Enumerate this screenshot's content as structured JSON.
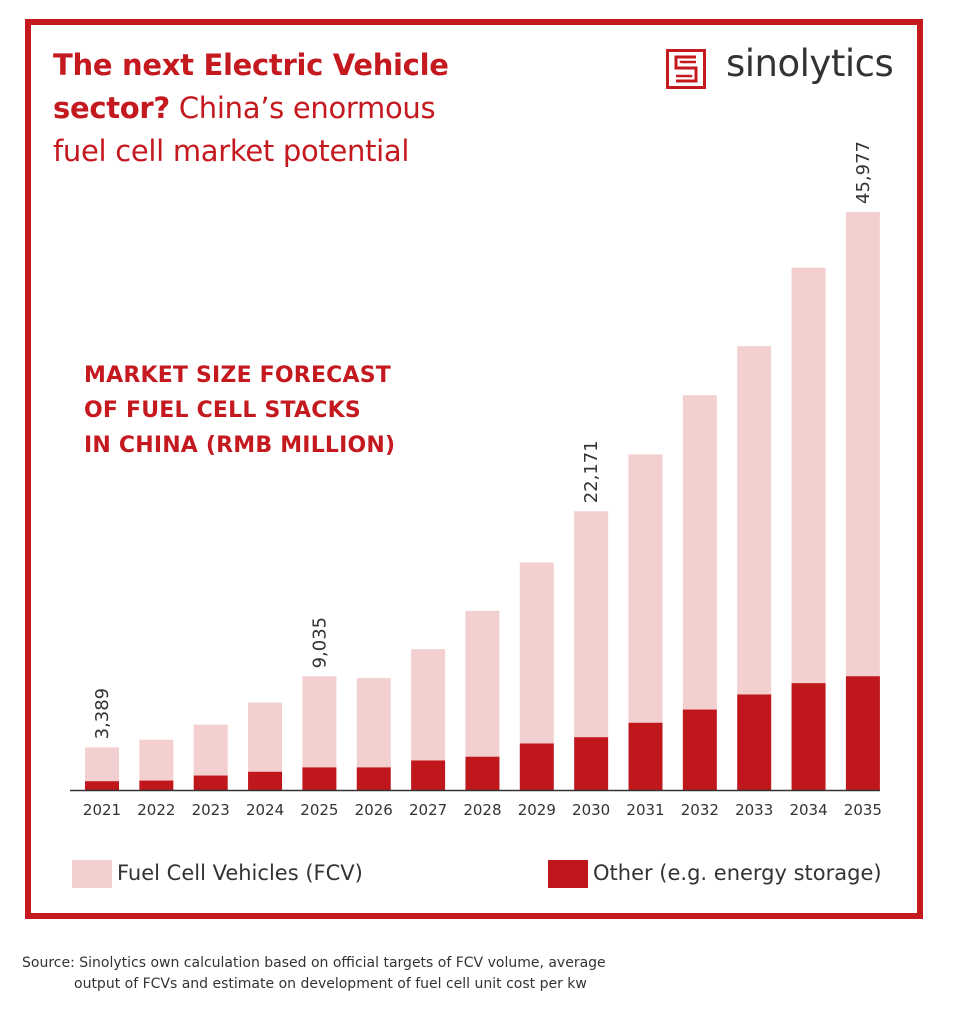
{
  "header": {
    "title_bold_1": "The next Electric Vehicle",
    "title_bold_2": "sector?",
    "title_rest_2": " China’s enormous",
    "title_line_3": "fuel cell market potential"
  },
  "logo": {
    "text": "sinolytics",
    "icon": "sinolytics-logo-icon"
  },
  "chart_title": {
    "line1": "MARKET SIZE FORECAST",
    "line2": "OF FUEL CELL STACKS",
    "line3": "IN CHINA (RMB MILLION)"
  },
  "colors": {
    "fcv": "#f3cfcf",
    "other": "#c0171c",
    "accent": "#c4191f",
    "axis": "#333333"
  },
  "chart_data": {
    "type": "bar",
    "stacked": true,
    "title": "MARKET SIZE FORECAST OF FUEL CELL STACKS IN CHINA (RMB MILLION)",
    "xlabel": "",
    "ylabel": "",
    "ylim": [
      0,
      45977
    ],
    "grid": false,
    "legend_position": "bottom",
    "categories": [
      "2021",
      "2022",
      "2023",
      "2024",
      "2025",
      "2026",
      "2027",
      "2028",
      "2029",
      "2030",
      "2031",
      "2032",
      "2033",
      "2034",
      "2035"
    ],
    "series": [
      {
        "name": "Other (e.g. energy storage)",
        "values": [
          700,
          750,
          1150,
          1450,
          1800,
          1800,
          2350,
          2650,
          3700,
          4200,
          5350,
          6400,
          7600,
          8500,
          9050
        ]
      },
      {
        "name": "Fuel Cell Vehicles (FCV)",
        "values": [
          2689,
          3250,
          4050,
          5500,
          7235,
          7100,
          8850,
          11600,
          14400,
          17971,
          21350,
          25000,
          27700,
          33050,
          36927
        ]
      }
    ],
    "totals": [
      3389,
      4000,
      5200,
      6950,
      9035,
      8900,
      11200,
      14250,
      18100,
      22171,
      26700,
      31400,
      35300,
      41550,
      45977
    ],
    "data_labels": [
      {
        "category": "2021",
        "text": "3,389"
      },
      {
        "category": "2025",
        "text": "9,035"
      },
      {
        "category": "2030",
        "text": "22,171"
      },
      {
        "category": "2035",
        "text": "45,977"
      }
    ]
  },
  "source": {
    "line1": "Source: Sinolytics own calculation based on official targets of FCV volume, average",
    "line2": "output of FCVs and estimate on development of fuel cell unit cost per kw"
  }
}
